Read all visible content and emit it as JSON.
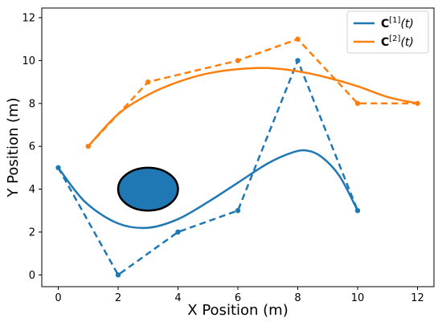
{
  "chart_data": {
    "type": "line",
    "xlabel": "X Position (m)",
    "ylabel": "Y Position (m)",
    "xlim": [
      -0.55,
      12.55
    ],
    "ylim": [
      -0.55,
      12.45
    ],
    "xticks": [
      0,
      2,
      4,
      6,
      8,
      10,
      12
    ],
    "yticks": [
      0,
      2,
      4,
      6,
      8,
      10,
      12
    ],
    "grid": false,
    "legend_position": "top-right",
    "series": [
      {
        "name": "C[1](t)",
        "legend": {
          "bold": "C",
          "sup": "[1]",
          "tail": "(t)"
        },
        "color": "#1f77b4",
        "control_points": [
          [
            0,
            5
          ],
          [
            2,
            0
          ],
          [
            4,
            2
          ],
          [
            6,
            3
          ],
          [
            8,
            10
          ],
          [
            10,
            3
          ]
        ],
        "curve_points": [
          [
            0,
            5
          ],
          [
            0.9,
            3.4
          ],
          [
            2.0,
            2.4
          ],
          [
            3.0,
            2.2
          ],
          [
            4.0,
            2.6
          ],
          [
            5.0,
            3.4
          ],
          [
            6.0,
            4.3
          ],
          [
            7.0,
            5.2
          ],
          [
            7.8,
            5.7
          ],
          [
            8.3,
            5.8
          ],
          [
            8.8,
            5.5
          ],
          [
            9.4,
            4.6
          ],
          [
            10,
            3
          ]
        ]
      },
      {
        "name": "C[2](t)",
        "legend": {
          "bold": "C",
          "sup": "[2]",
          "tail": "(t)"
        },
        "color": "#ff7f0e",
        "control_points": [
          [
            1,
            6
          ],
          [
            3,
            9
          ],
          [
            6,
            10
          ],
          [
            8,
            11
          ],
          [
            10,
            8
          ],
          [
            12,
            8
          ]
        ],
        "curve_points": [
          [
            1,
            6
          ],
          [
            2.0,
            7.5
          ],
          [
            3.0,
            8.4
          ],
          [
            4.0,
            9.0
          ],
          [
            5.0,
            9.4
          ],
          [
            6.0,
            9.6
          ],
          [
            7.0,
            9.65
          ],
          [
            8.0,
            9.5
          ],
          [
            9.0,
            9.2
          ],
          [
            10.0,
            8.8
          ],
          [
            11.0,
            8.3
          ],
          [
            12,
            8
          ]
        ]
      }
    ],
    "obstacle": {
      "shape": "ellipse",
      "center": [
        3,
        4
      ],
      "rx": 1.0,
      "ry": 1.0,
      "fill": "#1f77b4",
      "stroke": "#000000"
    }
  }
}
